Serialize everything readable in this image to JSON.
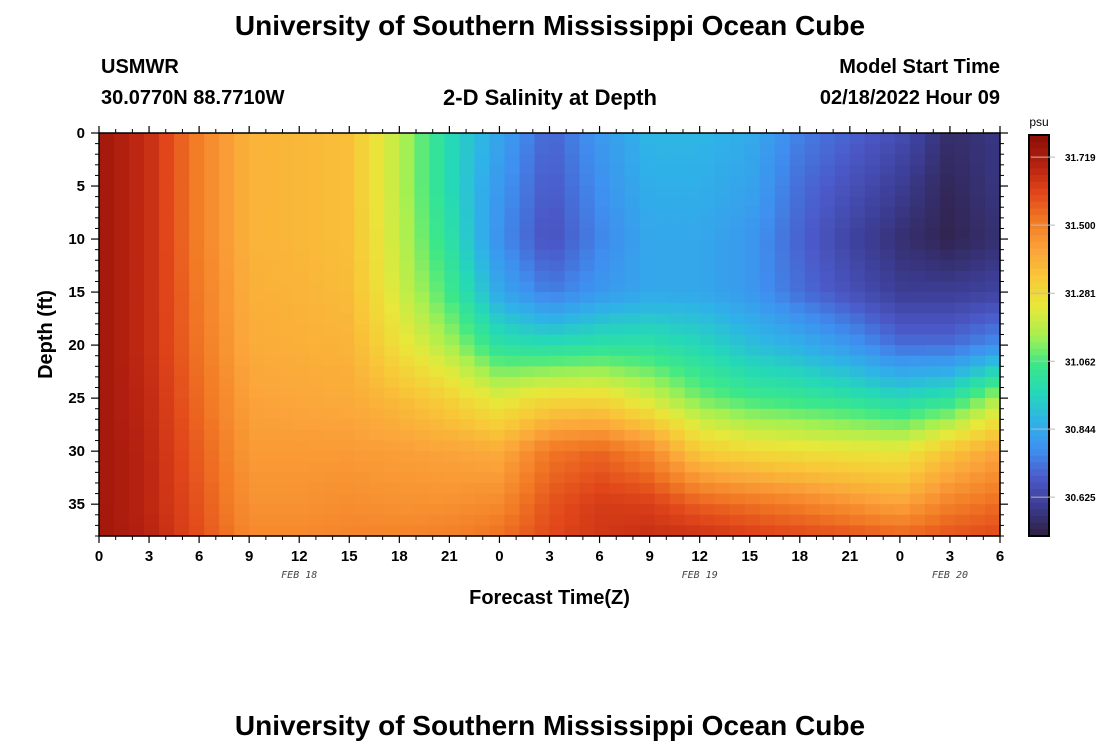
{
  "page": {
    "title": "University of Southern Mississippi Ocean Cube",
    "title_repeat": "University of Southern Mississippi Ocean Cube",
    "station_name": "USMWR",
    "station_coords": "30.0770N  88.7710W",
    "model_label": "Model Start Time",
    "model_time": "02/18/2022 Hour 09"
  },
  "chart_data": {
    "type": "heatmap",
    "title": "2-D Salinity at Depth",
    "xlabel": "Forecast Time(Z)",
    "ylabel": "Depth (ft)",
    "x_tick_labels": [
      "0",
      "3",
      "6",
      "9",
      "12",
      "15",
      "18",
      "21",
      "0",
      "3",
      "6",
      "9",
      "12",
      "15",
      "18",
      "21",
      "0",
      "3",
      "6"
    ],
    "x_hours": [
      0,
      3,
      6,
      9,
      12,
      15,
      18,
      21,
      24,
      27,
      30,
      33,
      36,
      39,
      42,
      45,
      48,
      51,
      54
    ],
    "xlim": [
      0,
      54
    ],
    "date_labels": [
      {
        "text": "FEB 18",
        "hour": 12
      },
      {
        "text": "FEB 19",
        "hour": 36
      },
      {
        "text": "FEB 20",
        "hour": 51
      }
    ],
    "y_ticks": [
      0,
      5,
      10,
      15,
      20,
      25,
      30,
      35
    ],
    "ylim": [
      0,
      38
    ],
    "y_inverted": true,
    "colorbar": {
      "unit": "psu",
      "min": 30.5,
      "max": 31.79,
      "ticks": [
        31.719,
        31.5,
        31.281,
        31.062,
        30.844,
        30.625
      ],
      "tick_labels": [
        "31.719",
        "31.500",
        "31.281",
        "31.062",
        "30.844",
        "30.625"
      ],
      "colors": [
        "#2d1e3e",
        "#3b3b8f",
        "#4b59c8",
        "#3f8ff0",
        "#2fb2e8",
        "#25d8b8",
        "#3de888",
        "#a8f050",
        "#e8e83a",
        "#f8c838",
        "#fba33a",
        "#f27a25",
        "#e0451a",
        "#b42010",
        "#8a0e06"
      ]
    },
    "depth_rows": [
      0,
      5,
      10,
      15,
      20,
      25,
      30,
      35,
      38
    ],
    "time_cols": [
      0,
      3,
      6,
      9,
      12,
      15,
      18,
      21,
      24,
      27,
      30,
      33,
      36,
      39,
      42,
      45,
      48,
      51,
      54
    ],
    "values": [
      [
        31.74,
        31.66,
        31.5,
        31.38,
        31.37,
        31.35,
        31.17,
        30.97,
        30.83,
        30.7,
        30.8,
        30.88,
        30.88,
        30.85,
        30.75,
        30.7,
        30.65,
        30.55,
        30.58
      ],
      [
        31.74,
        31.66,
        31.5,
        31.38,
        31.37,
        31.35,
        31.17,
        30.97,
        30.8,
        30.68,
        30.78,
        30.86,
        30.86,
        30.83,
        30.72,
        30.66,
        30.6,
        30.53,
        30.58
      ],
      [
        31.74,
        31.66,
        31.5,
        31.38,
        31.37,
        31.35,
        31.18,
        31.0,
        30.78,
        30.66,
        30.76,
        30.84,
        30.84,
        30.8,
        30.7,
        30.62,
        30.56,
        30.52,
        30.56
      ],
      [
        31.74,
        31.66,
        31.51,
        31.39,
        31.38,
        31.36,
        31.2,
        31.05,
        30.84,
        30.74,
        30.8,
        30.84,
        30.84,
        30.8,
        30.72,
        30.66,
        30.6,
        30.6,
        30.62
      ],
      [
        31.74,
        31.66,
        31.52,
        31.4,
        31.39,
        31.38,
        31.26,
        31.15,
        31.0,
        30.98,
        31.0,
        31.0,
        30.96,
        30.9,
        30.86,
        30.8,
        30.72,
        30.72,
        30.78
      ],
      [
        31.74,
        31.67,
        31.54,
        31.42,
        31.41,
        31.4,
        31.36,
        31.3,
        31.22,
        31.28,
        31.28,
        31.2,
        31.1,
        31.05,
        31.03,
        31.0,
        30.96,
        31.0,
        31.16
      ],
      [
        31.74,
        31.68,
        31.56,
        31.44,
        31.44,
        31.44,
        31.43,
        31.42,
        31.4,
        31.52,
        31.55,
        31.48,
        31.32,
        31.28,
        31.26,
        31.25,
        31.24,
        31.34,
        31.42
      ],
      [
        31.74,
        31.68,
        31.58,
        31.46,
        31.46,
        31.47,
        31.46,
        31.46,
        31.48,
        31.58,
        31.63,
        31.62,
        31.56,
        31.53,
        31.5,
        31.46,
        31.42,
        31.5,
        31.54
      ],
      [
        31.74,
        31.69,
        31.59,
        31.48,
        31.48,
        31.49,
        31.49,
        31.5,
        31.53,
        31.6,
        31.64,
        31.66,
        31.65,
        31.62,
        31.6,
        31.58,
        31.55,
        31.58,
        31.6
      ]
    ]
  }
}
